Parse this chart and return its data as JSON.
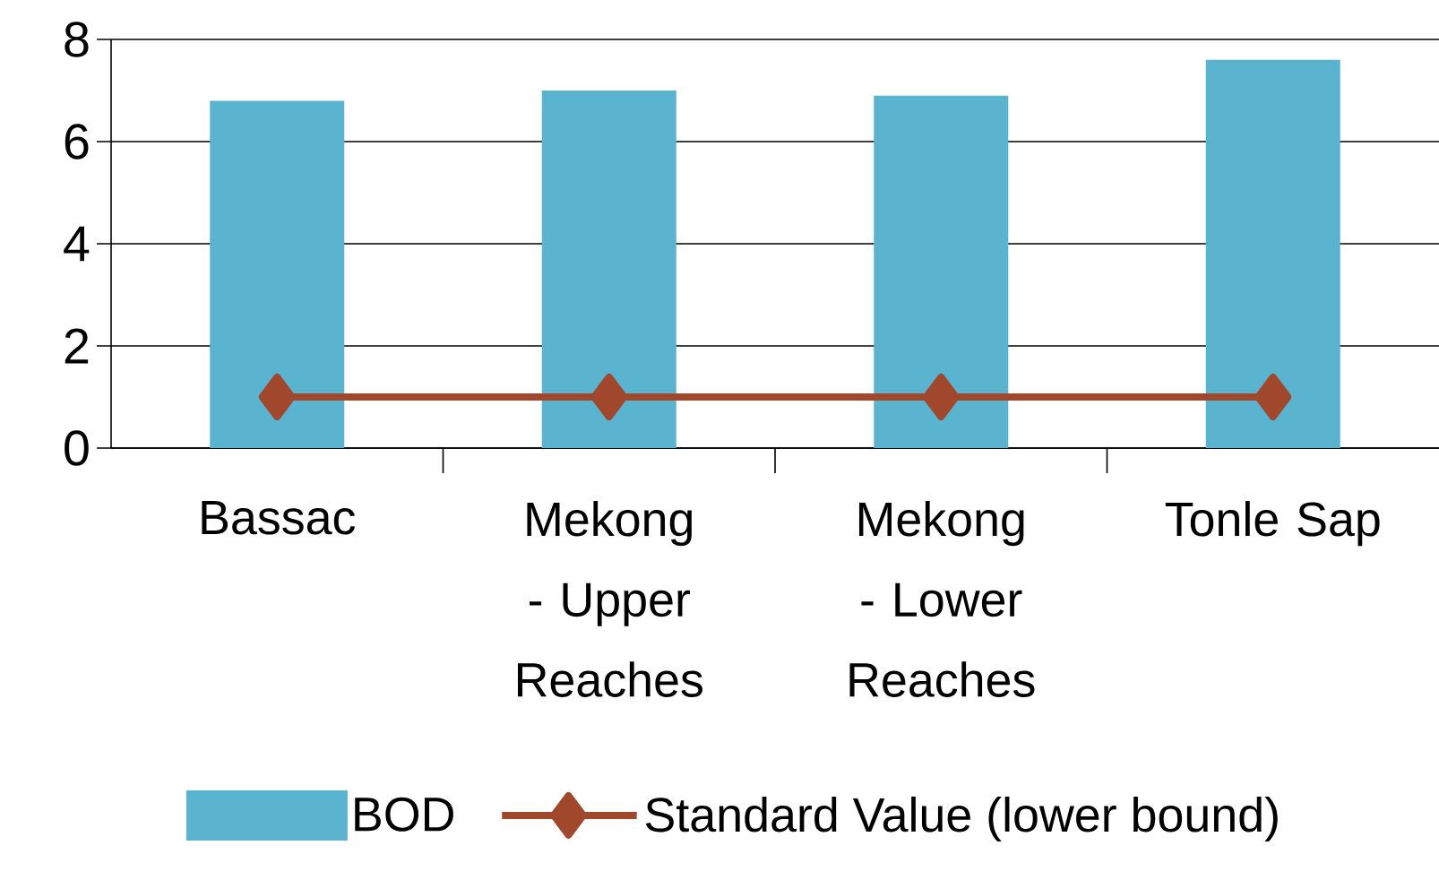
{
  "chart_data": {
    "type": "bar",
    "categories": [
      "Bassac",
      "Mekong - Upper Reaches",
      "Mekong - Lower Reaches",
      "Tonle Sap"
    ],
    "series": [
      {
        "name": "BOD",
        "color": "#5ab4d0",
        "values": [
          6.8,
          7.0,
          6.9,
          7.6
        ]
      },
      {
        "name": "Standard Value (lower bound)",
        "type": "line",
        "color": "#a0472c",
        "values": [
          1,
          1,
          1,
          1
        ]
      }
    ],
    "ylim": [
      0,
      8
    ],
    "yticks": [
      0,
      2,
      4,
      6,
      8
    ],
    "grid": "y",
    "legend": "bottom",
    "marker": "diamond"
  }
}
